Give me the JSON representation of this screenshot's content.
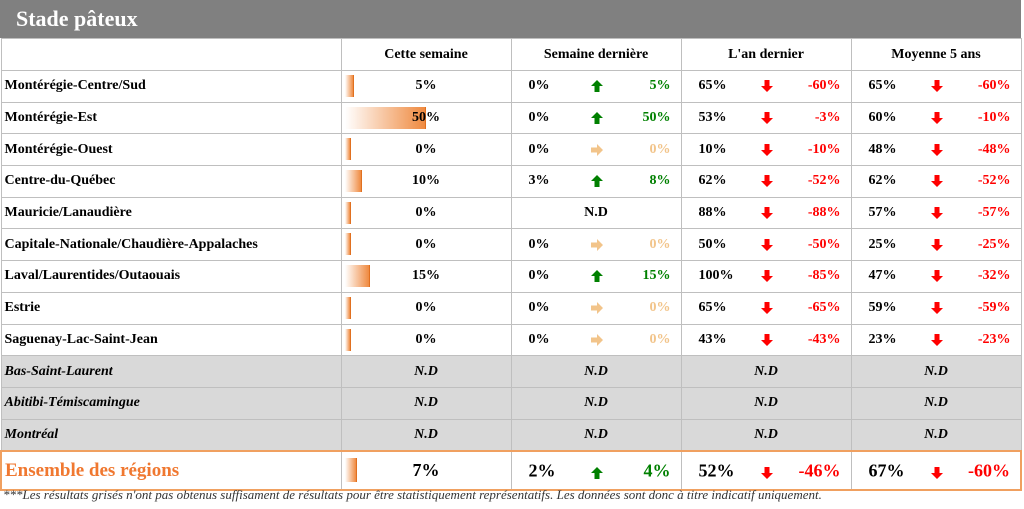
{
  "title": "Stade pâteux",
  "columns": [
    "Cette semaine",
    "Semaine dernière",
    "L'an dernier",
    "Moyenne 5 ans"
  ],
  "rows": [
    {
      "region": "Montérégie-Centre/Sud",
      "grey": false,
      "cw": "5%",
      "cw_pct": 5,
      "lw": {
        "v": "0%",
        "dir": "up",
        "d": "5%"
      },
      "ly": {
        "v": "65%",
        "dir": "down",
        "d": "-60%"
      },
      "avg": {
        "v": "65%",
        "dir": "down",
        "d": "-60%"
      }
    },
    {
      "region": "Montérégie-Est",
      "grey": false,
      "cw": "50%",
      "cw_pct": 50,
      "lw": {
        "v": "0%",
        "dir": "up",
        "d": "50%"
      },
      "ly": {
        "v": "53%",
        "dir": "down",
        "d": "-3%"
      },
      "avg": {
        "v": "60%",
        "dir": "down",
        "d": "-10%"
      }
    },
    {
      "region": "Montérégie-Ouest",
      "grey": false,
      "cw": "0%",
      "cw_pct": 0,
      "lw": {
        "v": "0%",
        "dir": "flat",
        "d": "0%"
      },
      "ly": {
        "v": "10%",
        "dir": "down",
        "d": "-10%"
      },
      "avg": {
        "v": "48%",
        "dir": "down",
        "d": "-48%"
      }
    },
    {
      "region": "Centre-du-Québec",
      "grey": false,
      "cw": "10%",
      "cw_pct": 10,
      "lw": {
        "v": "3%",
        "dir": "up",
        "d": "8%"
      },
      "ly": {
        "v": "62%",
        "dir": "down",
        "d": "-52%"
      },
      "avg": {
        "v": "62%",
        "dir": "down",
        "d": "-52%"
      }
    },
    {
      "region": "Mauricie/Lanaudière",
      "grey": false,
      "cw": "0%",
      "cw_pct": 0,
      "lw_nd": "N.D",
      "ly": {
        "v": "88%",
        "dir": "down",
        "d": "-88%"
      },
      "avg": {
        "v": "57%",
        "dir": "down",
        "d": "-57%"
      }
    },
    {
      "region": "Capitale-Nationale/Chaudière-Appalaches",
      "grey": false,
      "cw": "0%",
      "cw_pct": 0,
      "lw": {
        "v": "0%",
        "dir": "flat",
        "d": "0%"
      },
      "ly": {
        "v": "50%",
        "dir": "down",
        "d": "-50%"
      },
      "avg": {
        "v": "25%",
        "dir": "down",
        "d": "-25%"
      }
    },
    {
      "region": "Laval/Laurentides/Outaouais",
      "grey": false,
      "cw": "15%",
      "cw_pct": 15,
      "lw": {
        "v": "0%",
        "dir": "up",
        "d": "15%"
      },
      "ly": {
        "v": "100%",
        "dir": "down",
        "d": "-85%"
      },
      "avg": {
        "v": "47%",
        "dir": "down",
        "d": "-32%"
      }
    },
    {
      "region": "Estrie",
      "grey": false,
      "cw": "0%",
      "cw_pct": 0,
      "lw": {
        "v": "0%",
        "dir": "flat",
        "d": "0%"
      },
      "ly": {
        "v": "65%",
        "dir": "down",
        "d": "-65%"
      },
      "avg": {
        "v": "59%",
        "dir": "down",
        "d": "-59%"
      }
    },
    {
      "region": "Saguenay-Lac-Saint-Jean",
      "grey": false,
      "cw": "0%",
      "cw_pct": 0,
      "lw": {
        "v": "0%",
        "dir": "flat",
        "d": "0%"
      },
      "ly": {
        "v": "43%",
        "dir": "down",
        "d": "-43%"
      },
      "avg": {
        "v": "23%",
        "dir": "down",
        "d": "-23%"
      }
    },
    {
      "region": "Bas-Saint-Laurent",
      "grey": true,
      "nd": "N.D"
    },
    {
      "region": "Abitibi-Témiscamingue",
      "grey": true,
      "nd": "N.D"
    },
    {
      "region": "Montréal",
      "grey": true,
      "nd": "N.D"
    }
  ],
  "total": {
    "region": "Ensemble des régions",
    "cw": "7%",
    "cw_pct": 7,
    "lw": {
      "v": "2%",
      "dir": "up",
      "d": "4%"
    },
    "ly": {
      "v": "52%",
      "dir": "down",
      "d": "-46%"
    },
    "avg": {
      "v": "67%",
      "dir": "down",
      "d": "-60%"
    }
  },
  "note": "***Les résultats grisés n'ont pas obtenus suffisament de résultats pour être statistiquement représentatifs. Les données sont donc à titre indicatif uniquement.",
  "colors": {
    "up": "#008000",
    "down": "#ff0000",
    "flat": "#f2c48a",
    "bar": "#ef8a40",
    "header": "#808080"
  },
  "icons": {
    "up": "arrow-up-icon",
    "down": "arrow-down-icon",
    "flat": "arrow-right-icon"
  }
}
